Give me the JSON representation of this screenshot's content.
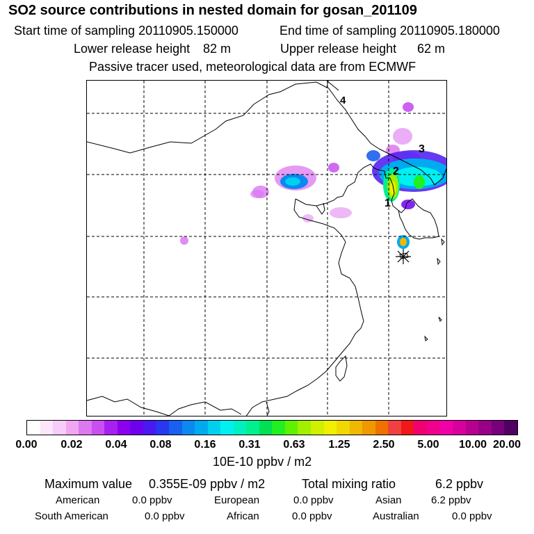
{
  "header": {
    "title": "SO2 source contributions in nested domain for gosan_201109",
    "start_label": "Start time of sampling 20110905.150000",
    "end_label": "End time of sampling 20110905.180000",
    "lower_label": "Lower release height",
    "lower_value": "82 m",
    "upper_label": "Upper release height",
    "upper_value": "62 m",
    "note": "Passive tracer used, meteorological data are from ECMWF"
  },
  "map": {
    "site_labels": [
      "1",
      "2",
      "3",
      "4"
    ],
    "receptor_marker": "asterisk-icon"
  },
  "legend": {
    "tick_labels": [
      "0.00",
      "0.02",
      "0.04",
      "0.08",
      "0.16",
      "0.31",
      "0.63",
      "1.25",
      "2.50",
      "5.00",
      "10.00",
      "20.00"
    ],
    "unit": "10E-10 ppbv / m2",
    "colors": [
      "#ffffff",
      "#fce6fc",
      "#f8ccf8",
      "#f0a6f0",
      "#dc78f0",
      "#c850f0",
      "#a820f0",
      "#8c00f0",
      "#6e00f0",
      "#4a18f0",
      "#2838f0",
      "#1860f0",
      "#0c88f0",
      "#00aaf0",
      "#00d0f0",
      "#00f0f0",
      "#00f0c0",
      "#00f090",
      "#00e050",
      "#20f020",
      "#60f000",
      "#a0f000",
      "#d0f000",
      "#f0f000",
      "#f0d800",
      "#f0b800",
      "#f09800",
      "#f07000",
      "#f04040",
      "#f01818",
      "#f00070",
      "#f0008c",
      "#f000a8",
      "#d8009c",
      "#b80090",
      "#980088",
      "#78007c",
      "#500060"
    ]
  },
  "stats": {
    "max_label": "Maximum value",
    "max_value": "0.355E-09 ppbv / m2",
    "total_label": "Total mixing ratio",
    "total_value": "6.2 ppbv"
  },
  "regions": [
    {
      "name": "American",
      "value": "0.0 ppbv"
    },
    {
      "name": "European",
      "value": "0.0 ppbv"
    },
    {
      "name": "Asian",
      "value": "6.2 ppbv"
    },
    {
      "name": "South American",
      "value": "0.0 ppbv"
    },
    {
      "name": "African",
      "value": "0.0 ppbv"
    },
    {
      "name": "Australian",
      "value": "0.0 ppbv"
    }
  ]
}
